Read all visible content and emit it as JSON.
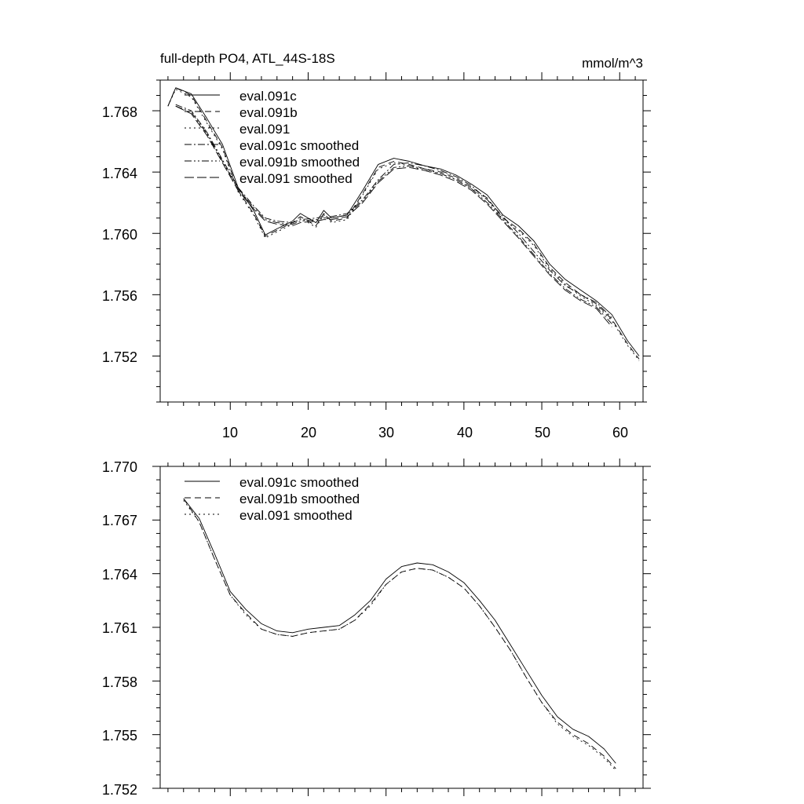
{
  "chart_data": [
    {
      "type": "line",
      "title": "full-depth PO4, ATL_44S-18S",
      "units": "mmol/m^3",
      "xlim": [
        1,
        63
      ],
      "ylim": [
        1.749,
        1.77
      ],
      "xticks": [
        10,
        20,
        30,
        40,
        50,
        60
      ],
      "xtick_labels": [
        "10",
        "20",
        "30",
        "40",
        "50",
        "60"
      ],
      "yticks": [
        1.752,
        1.756,
        1.76,
        1.764,
        1.768
      ],
      "ytick_labels": [
        "1.752",
        "1.756",
        "1.760",
        "1.764",
        "1.768"
      ],
      "legend_position": "top-left",
      "x": [
        2,
        3,
        5,
        7,
        9,
        11,
        13,
        14.5,
        16,
        18,
        19,
        21,
        22,
        23,
        25,
        27,
        29,
        31,
        33,
        35,
        37,
        39,
        41,
        43,
        45,
        47,
        49,
        51,
        53,
        55,
        57,
        59,
        61,
        62.5
      ],
      "series": [
        {
          "name": "eval.091c",
          "style": "solid",
          "values": [
            1.7683,
            1.7695,
            1.7691,
            1.7675,
            1.7658,
            1.763,
            1.7615,
            1.7599,
            1.7603,
            1.7608,
            1.7613,
            1.7607,
            1.7615,
            1.761,
            1.7612,
            1.7628,
            1.7645,
            1.7649,
            1.7647,
            1.7644,
            1.7642,
            1.7638,
            1.7632,
            1.7625,
            1.7612,
            1.7605,
            1.7595,
            1.758,
            1.757,
            1.7563,
            1.7556,
            1.7547,
            1.753,
            1.752
          ]
        },
        {
          "name": "eval.091b",
          "style": "dash",
          "values": [
            1.7683,
            1.7695,
            1.769,
            1.7673,
            1.7656,
            1.7628,
            1.7613,
            1.7598,
            1.7602,
            1.7607,
            1.7611,
            1.7605,
            1.7613,
            1.7608,
            1.761,
            1.7626,
            1.7643,
            1.7647,
            1.7645,
            1.7642,
            1.764,
            1.7636,
            1.763,
            1.7623,
            1.761,
            1.7603,
            1.7593,
            1.7578,
            1.7568,
            1.756,
            1.7554,
            1.7544,
            1.7528,
            1.7518
          ]
        },
        {
          "name": "eval.091",
          "style": "dot",
          "values": [
            1.7683,
            1.7694,
            1.7689,
            1.7672,
            1.7655,
            1.7627,
            1.7612,
            1.7597,
            1.7601,
            1.7606,
            1.761,
            1.7604,
            1.7612,
            1.7607,
            1.7609,
            1.7625,
            1.7642,
            1.7646,
            1.7644,
            1.7641,
            1.7639,
            1.7635,
            1.7629,
            1.7622,
            1.7609,
            1.7602,
            1.7592,
            1.7577,
            1.7567,
            1.7559,
            1.7553,
            1.7543,
            1.7527,
            1.7517
          ]
        },
        {
          "name": "eval.091c smoothed",
          "style": "dashdot",
          "values": [
            null,
            1.7684,
            1.768,
            1.7666,
            1.7648,
            1.763,
            1.7618,
            1.761,
            1.7608,
            1.7607,
            1.7609,
            1.761,
            1.7611,
            1.7611,
            1.7613,
            1.7622,
            1.7635,
            1.7645,
            1.7646,
            1.7644,
            1.7641,
            1.7637,
            1.7631,
            1.7622,
            1.7611,
            1.76,
            1.7588,
            1.7576,
            1.7566,
            1.756,
            1.7555,
            1.7545,
            null,
            null
          ]
        },
        {
          "name": "eval.091b smoothed",
          "style": "dashdotdot",
          "values": [
            null,
            1.7683,
            1.7679,
            1.7665,
            1.7647,
            1.7629,
            1.7617,
            1.7609,
            1.7607,
            1.7606,
            1.7608,
            1.7609,
            1.761,
            1.761,
            1.7612,
            1.7621,
            1.7634,
            1.7643,
            1.7644,
            1.7642,
            1.7639,
            1.7635,
            1.7629,
            1.762,
            1.7609,
            1.7598,
            1.7586,
            1.7574,
            1.7564,
            1.7557,
            1.7552,
            1.7541,
            null,
            null
          ]
        },
        {
          "name": "eval.091 smoothed",
          "style": "longdash",
          "values": [
            null,
            1.7683,
            1.7678,
            1.7664,
            1.7646,
            1.7628,
            1.7616,
            1.7608,
            1.7606,
            1.7605,
            1.7607,
            1.7608,
            1.7609,
            1.7609,
            1.7611,
            1.762,
            1.7633,
            1.7642,
            1.7643,
            1.7641,
            1.7638,
            1.7634,
            1.7628,
            1.7619,
            1.7608,
            1.7597,
            1.7585,
            1.7573,
            1.7563,
            1.7556,
            1.7551,
            1.7539,
            null,
            null
          ]
        }
      ]
    },
    {
      "type": "line",
      "title": "",
      "xlim": [
        1,
        63
      ],
      "ylim": [
        1.752,
        1.77
      ],
      "yticks": [
        1.752,
        1.755,
        1.758,
        1.761,
        1.764,
        1.767,
        1.77
      ],
      "ytick_labels": [
        "1.752",
        "1.755",
        "1.758",
        "1.761",
        "1.764",
        "1.767",
        "1.770"
      ],
      "legend_position": "top-left",
      "x": [
        4,
        6,
        8,
        10,
        12,
        14,
        16,
        18,
        20,
        22,
        24,
        26,
        28,
        30,
        32,
        34,
        36,
        38,
        40,
        42,
        44,
        46,
        48,
        50,
        52,
        54,
        56,
        58,
        59.5
      ],
      "series": [
        {
          "name": "eval.091c smoothed",
          "style": "solid",
          "values": [
            1.7682,
            1.7671,
            1.7651,
            1.763,
            1.762,
            1.7612,
            1.7608,
            1.7607,
            1.7609,
            1.761,
            1.7611,
            1.7617,
            1.7625,
            1.7637,
            1.7644,
            1.7646,
            1.7645,
            1.7641,
            1.7635,
            1.7625,
            1.7614,
            1.76,
            1.7586,
            1.7572,
            1.756,
            1.7553,
            1.7549,
            1.7542,
            1.7534
          ]
        },
        {
          "name": "eval.091b smoothed",
          "style": "dash",
          "values": [
            1.7682,
            1.7669,
            1.7648,
            1.7628,
            1.7618,
            1.7609,
            1.7606,
            1.7605,
            1.7607,
            1.7608,
            1.7609,
            1.7614,
            1.7623,
            1.7634,
            1.7641,
            1.7643,
            1.7642,
            1.7638,
            1.7632,
            1.7622,
            1.761,
            1.7597,
            1.7582,
            1.7568,
            1.7557,
            1.755,
            1.7545,
            1.7538,
            1.7531
          ]
        },
        {
          "name": "eval.091 smoothed",
          "style": "dot",
          "values": [
            1.7681,
            1.7669,
            1.7648,
            1.7628,
            1.7617,
            1.7609,
            1.7606,
            1.7605,
            1.7607,
            1.7608,
            1.7609,
            1.7614,
            1.7622,
            1.7634,
            1.7641,
            1.7643,
            1.7642,
            1.7638,
            1.7632,
            1.7622,
            1.761,
            1.7597,
            1.7582,
            1.7568,
            1.7556,
            1.7549,
            1.7544,
            1.7537,
            1.753
          ]
        }
      ]
    }
  ]
}
